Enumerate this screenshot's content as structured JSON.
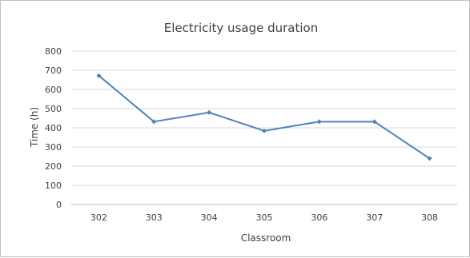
{
  "chart_data": {
    "type": "line",
    "title": "Electricity usage duration",
    "xlabel": "Classroom",
    "ylabel": "Time (h)",
    "categories": [
      "302",
      "303",
      "304",
      "305",
      "306",
      "307",
      "308"
    ],
    "series": [
      {
        "values": [
          672,
          432,
          480,
          384,
          432,
          432,
          240
        ],
        "color": "#4f81bd"
      }
    ],
    "ylim": [
      0,
      800
    ],
    "yticks": [
      0,
      100,
      200,
      300,
      400,
      500,
      600,
      700,
      800
    ],
    "grid": true,
    "legend": "none"
  }
}
